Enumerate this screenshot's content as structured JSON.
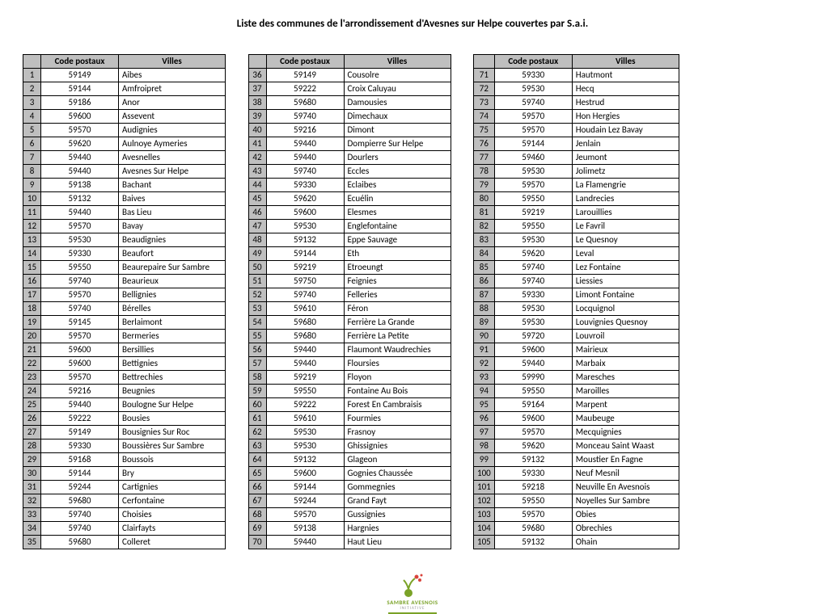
{
  "title": "Liste des communes de l'arrondissement d'Avesnes sur Helpe couvertes par S.a.i.",
  "headers": {
    "code": "Code postaux",
    "ville": "Villes"
  },
  "columns": [
    {
      "rows": [
        {
          "n": 1,
          "c": "59149",
          "v": "Aibes"
        },
        {
          "n": 2,
          "c": "59144",
          "v": "Amfroipret"
        },
        {
          "n": 3,
          "c": "59186",
          "v": "Anor"
        },
        {
          "n": 4,
          "c": "59600",
          "v": "Assevent"
        },
        {
          "n": 5,
          "c": "59570",
          "v": "Audignies"
        },
        {
          "n": 6,
          "c": "59620",
          "v": "Aulnoye Aymeries"
        },
        {
          "n": 7,
          "c": "59440",
          "v": "Avesnelles"
        },
        {
          "n": 8,
          "c": "59440",
          "v": "Avesnes Sur Helpe"
        },
        {
          "n": 9,
          "c": "59138",
          "v": "Bachant"
        },
        {
          "n": 10,
          "c": "59132",
          "v": "Baives"
        },
        {
          "n": 11,
          "c": "59440",
          "v": "Bas Lieu"
        },
        {
          "n": 12,
          "c": "59570",
          "v": "Bavay"
        },
        {
          "n": 13,
          "c": "59530",
          "v": "Beaudignies"
        },
        {
          "n": 14,
          "c": "59330",
          "v": "Beaufort"
        },
        {
          "n": 15,
          "c": "59550",
          "v": "Beaurepaire Sur Sambre"
        },
        {
          "n": 16,
          "c": "59740",
          "v": "Beaurieux"
        },
        {
          "n": 17,
          "c": "59570",
          "v": "Bellignies"
        },
        {
          "n": 18,
          "c": "59740",
          "v": "Bérelles"
        },
        {
          "n": 19,
          "c": "59145",
          "v": "Berlaimont"
        },
        {
          "n": 20,
          "c": "59570",
          "v": "Bermeries"
        },
        {
          "n": 21,
          "c": "59600",
          "v": "Bersillies"
        },
        {
          "n": 22,
          "c": "59600",
          "v": "Bettignies"
        },
        {
          "n": 23,
          "c": "59570",
          "v": "Bettrechies"
        },
        {
          "n": 24,
          "c": "59216",
          "v": "Beugnies"
        },
        {
          "n": 25,
          "c": "59440",
          "v": "Boulogne Sur Helpe"
        },
        {
          "n": 26,
          "c": "59222",
          "v": "Bousies"
        },
        {
          "n": 27,
          "c": "59149",
          "v": "Bousignies Sur Roc"
        },
        {
          "n": 28,
          "c": "59330",
          "v": "Boussières Sur Sambre"
        },
        {
          "n": 29,
          "c": "59168",
          "v": "Boussois"
        },
        {
          "n": 30,
          "c": "59144",
          "v": "Bry"
        },
        {
          "n": 31,
          "c": "59244",
          "v": "Cartignies"
        },
        {
          "n": 32,
          "c": "59680",
          "v": "Cerfontaine"
        },
        {
          "n": 33,
          "c": "59740",
          "v": "Choisies"
        },
        {
          "n": 34,
          "c": "59740",
          "v": "Clairfayts"
        },
        {
          "n": 35,
          "c": "59680",
          "v": "Colleret"
        }
      ]
    },
    {
      "rows": [
        {
          "n": 36,
          "c": "59149",
          "v": "Cousolre"
        },
        {
          "n": 37,
          "c": "59222",
          "v": "Croix Caluyau"
        },
        {
          "n": 38,
          "c": "59680",
          "v": "Damousies"
        },
        {
          "n": 39,
          "c": "59740",
          "v": "Dimechaux"
        },
        {
          "n": 40,
          "c": "59216",
          "v": "Dimont"
        },
        {
          "n": 41,
          "c": "59440",
          "v": "Dompierre Sur Helpe"
        },
        {
          "n": 42,
          "c": "59440",
          "v": "Dourlers"
        },
        {
          "n": 43,
          "c": "59740",
          "v": "Eccles"
        },
        {
          "n": 44,
          "c": "59330",
          "v": "Eclaibes"
        },
        {
          "n": 45,
          "c": "59620",
          "v": "Ecuélin"
        },
        {
          "n": 46,
          "c": "59600",
          "v": "Elesmes"
        },
        {
          "n": 47,
          "c": "59530",
          "v": "Englefontaine"
        },
        {
          "n": 48,
          "c": "59132",
          "v": "Eppe Sauvage"
        },
        {
          "n": 49,
          "c": "59144",
          "v": "Eth"
        },
        {
          "n": 50,
          "c": "59219",
          "v": "Etroeungt"
        },
        {
          "n": 51,
          "c": "59750",
          "v": "Feignies"
        },
        {
          "n": 52,
          "c": "59740",
          "v": "Felleries"
        },
        {
          "n": 53,
          "c": "59610",
          "v": "Féron"
        },
        {
          "n": 54,
          "c": "59680",
          "v": "Ferrière La Grande"
        },
        {
          "n": 55,
          "c": "59680",
          "v": "Ferrière La Petite"
        },
        {
          "n": 56,
          "c": "59440",
          "v": "Flaumont Waudrechies"
        },
        {
          "n": 57,
          "c": "59440",
          "v": "Floursies"
        },
        {
          "n": 58,
          "c": "59219",
          "v": "Floyon"
        },
        {
          "n": 59,
          "c": "59550",
          "v": "Fontaine Au Bois"
        },
        {
          "n": 60,
          "c": "59222",
          "v": "Forest En Cambraisis"
        },
        {
          "n": 61,
          "c": "59610",
          "v": "Fourmies"
        },
        {
          "n": 62,
          "c": "59530",
          "v": "Frasnoy"
        },
        {
          "n": 63,
          "c": "59530",
          "v": "Ghissignies"
        },
        {
          "n": 64,
          "c": "59132",
          "v": "Glageon"
        },
        {
          "n": 65,
          "c": "59600",
          "v": "Gognies Chaussée"
        },
        {
          "n": 66,
          "c": "59144",
          "v": "Gommegnies"
        },
        {
          "n": 67,
          "c": "59244",
          "v": "Grand Fayt"
        },
        {
          "n": 68,
          "c": "59570",
          "v": "Gussignies"
        },
        {
          "n": 69,
          "c": "59138",
          "v": "Hargnies"
        },
        {
          "n": 70,
          "c": "59440",
          "v": "Haut Lieu"
        }
      ]
    },
    {
      "rows": [
        {
          "n": 71,
          "c": "59330",
          "v": "Hautmont"
        },
        {
          "n": 72,
          "c": "59530",
          "v": "Hecq"
        },
        {
          "n": 73,
          "c": "59740",
          "v": "Hestrud"
        },
        {
          "n": 74,
          "c": "59570",
          "v": "Hon Hergies"
        },
        {
          "n": 75,
          "c": "59570",
          "v": "Houdain Lez Bavay"
        },
        {
          "n": 76,
          "c": "59144",
          "v": "Jenlain"
        },
        {
          "n": 77,
          "c": "59460",
          "v": "Jeumont"
        },
        {
          "n": 78,
          "c": "59530",
          "v": "Jolimetz"
        },
        {
          "n": 79,
          "c": "59570",
          "v": "La Flamengrie"
        },
        {
          "n": 80,
          "c": "59550",
          "v": "Landrecies"
        },
        {
          "n": 81,
          "c": "59219",
          "v": "Larouillies"
        },
        {
          "n": 82,
          "c": "59550",
          "v": "Le Favril"
        },
        {
          "n": 83,
          "c": "59530",
          "v": "Le Quesnoy"
        },
        {
          "n": 84,
          "c": "59620",
          "v": "Leval"
        },
        {
          "n": 85,
          "c": "59740",
          "v": "Lez Fontaine"
        },
        {
          "n": 86,
          "c": "59740",
          "v": "Liessies"
        },
        {
          "n": 87,
          "c": "59330",
          "v": "Limont Fontaine"
        },
        {
          "n": 88,
          "c": "59530",
          "v": "Locquignol"
        },
        {
          "n": 89,
          "c": "59530",
          "v": "Louvignies Quesnoy"
        },
        {
          "n": 90,
          "c": "59720",
          "v": "Louvroil"
        },
        {
          "n": 91,
          "c": "59600",
          "v": "Mairieux"
        },
        {
          "n": 92,
          "c": "59440",
          "v": "Marbaix"
        },
        {
          "n": 93,
          "c": "59990",
          "v": "Maresches"
        },
        {
          "n": 94,
          "c": "59550",
          "v": "Maroilles"
        },
        {
          "n": 95,
          "c": "59164",
          "v": "Marpent"
        },
        {
          "n": 96,
          "c": "59600",
          "v": "Maubeuge"
        },
        {
          "n": 97,
          "c": "59570",
          "v": "Mecquignies"
        },
        {
          "n": 98,
          "c": "59620",
          "v": "Monceau Saint Waast"
        },
        {
          "n": 99,
          "c": "59132",
          "v": "Moustier En Fagne"
        },
        {
          "n": 100,
          "c": "59330",
          "v": "Neuf Mesnil"
        },
        {
          "n": 101,
          "c": "59218",
          "v": "Neuville En Avesnois"
        },
        {
          "n": 102,
          "c": "59550",
          "v": "Noyelles Sur Sambre"
        },
        {
          "n": 103,
          "c": "59570",
          "v": "Obies"
        },
        {
          "n": 104,
          "c": "59680",
          "v": "Obrechies"
        },
        {
          "n": 105,
          "c": "59132",
          "v": "Ohain"
        }
      ]
    }
  ],
  "logo": {
    "line1": "SAMBRE AVESNOIS",
    "line2": "INITIATIVE"
  }
}
